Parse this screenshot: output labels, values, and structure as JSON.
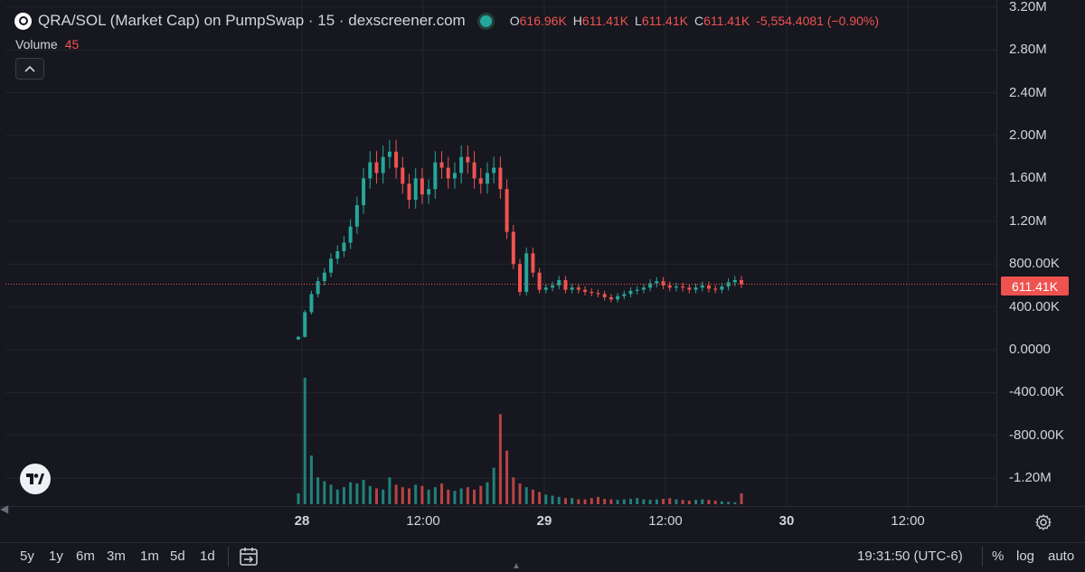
{
  "legend": {
    "title": "QRA/SOL (Market Cap) on PumpSwap · 15 · dexscreener.com",
    "o_key": "O",
    "o_val": "616.96K",
    "h_key": "H",
    "h_val": "611.41K",
    "l_key": "L",
    "l_val": "611.41K",
    "c_key": "C",
    "c_val": "611.41K",
    "change": "-5,554.4081 (−0.90%)"
  },
  "volume_legend": {
    "label": "Volume",
    "value": "45"
  },
  "last_price_label": "611.41K",
  "y_axis_labels": [
    "3.20M",
    "2.80M",
    "2.40M",
    "2.00M",
    "1.60M",
    "1.20M",
    "800.00K",
    "400.00K",
    "0.0000",
    "-400.00K",
    "-800.00K",
    "-1.20M"
  ],
  "x_axis_labels": [
    {
      "text": "28",
      "bold": true
    },
    {
      "text": "12:00",
      "bold": false
    },
    {
      "text": "29",
      "bold": true
    },
    {
      "text": "12:00",
      "bold": false
    },
    {
      "text": "30",
      "bold": true
    },
    {
      "text": "12:00",
      "bold": false
    }
  ],
  "range_buttons": [
    "5y",
    "1y",
    "6m",
    "3m",
    "1m",
    "5d",
    "1d"
  ],
  "clock": "19:31:50 (UTC-6)",
  "options": [
    "%",
    "log",
    "auto"
  ],
  "colors": {
    "up": "#26a69a",
    "down": "#ef5350",
    "background": "#17171f",
    "grid": "#24252e",
    "last_price_line": "#ef5350"
  },
  "icons": [
    "circle-logo-icon",
    "live-dot-icon",
    "chevron-up-icon",
    "tradingview-logo-icon",
    "gear-icon",
    "calendar-range-icon"
  ],
  "chart_data": {
    "type": "candlestick",
    "title": "QRA/SOL (Market Cap) on PumpSwap · 15",
    "ylim": [
      -1400000,
      3200000
    ],
    "y_ticks": [
      3200000,
      2800000,
      2400000,
      2000000,
      1600000,
      1200000,
      800000,
      400000,
      0,
      -400000,
      -800000,
      -1200000
    ],
    "x_ticks": [
      "28",
      "12:00",
      "29",
      "12:00",
      "30",
      "12:00"
    ],
    "last_price": 611410,
    "price_series_close": [
      120000,
      350000,
      520000,
      640000,
      720000,
      850000,
      920000,
      1000000,
      1150000,
      1350000,
      1600000,
      1750000,
      1650000,
      1800000,
      1850000,
      1700000,
      1550000,
      1400000,
      1600000,
      1450000,
      1500000,
      1750000,
      1700000,
      1600000,
      1650000,
      1800000,
      1750000,
      1600000,
      1550000,
      1650000,
      1700000,
      1500000,
      1100000,
      800000,
      540000,
      900000,
      720000,
      560000,
      580000,
      600000,
      650000,
      560000,
      580000,
      560000,
      540000,
      530000,
      520000,
      490000,
      470000,
      500000,
      520000,
      550000,
      560000,
      580000,
      620000,
      640000,
      600000,
      580000,
      590000,
      580000,
      560000,
      580000,
      600000,
      570000,
      560000,
      590000,
      630000,
      650000,
      611410
    ],
    "volume_series": [
      45,
      520,
      200,
      110,
      95,
      80,
      60,
      70,
      90,
      85,
      100,
      75,
      65,
      60,
      110,
      80,
      70,
      65,
      80,
      75,
      60,
      70,
      85,
      60,
      55,
      65,
      70,
      60,
      75,
      90,
      150,
      370,
      220,
      110,
      85,
      70,
      60,
      50,
      40,
      35,
      30,
      25,
      25,
      20,
      20,
      25,
      30,
      22,
      20,
      18,
      20,
      22,
      25,
      20,
      18,
      20,
      22,
      25,
      20,
      18,
      15,
      18,
      20,
      18,
      15,
      12,
      10,
      8,
      45
    ]
  }
}
